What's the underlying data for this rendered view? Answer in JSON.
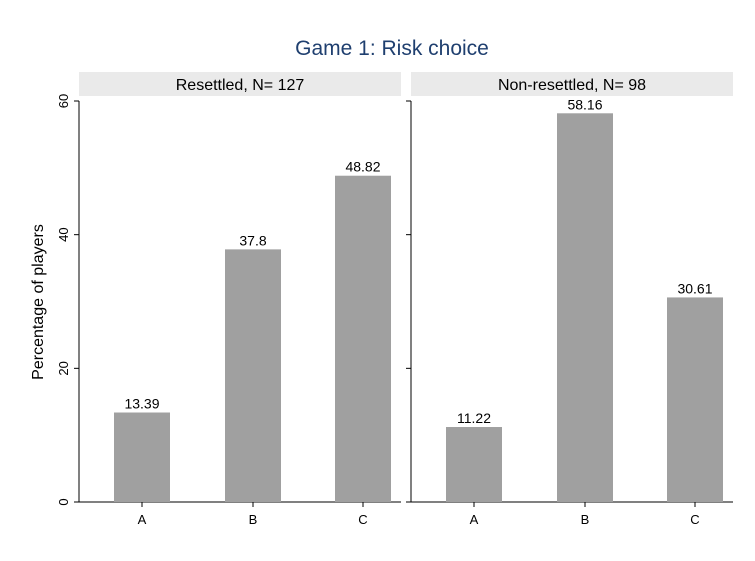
{
  "chart_data": {
    "type": "bar",
    "title": "Game 1: Risk choice",
    "ylabel": "Percentage of players",
    "xlabel": "",
    "ylim": [
      0,
      60
    ],
    "yticks": [
      0,
      20,
      40,
      60
    ],
    "grid": false,
    "categories": [
      "A",
      "B",
      "C"
    ],
    "bar_color": "#a0a0a0",
    "panel_header_color": "#eaeaea",
    "title_color": "#1f3f6f",
    "panels": [
      {
        "name": "Resettled, N= 127",
        "values": [
          13.39,
          37.8,
          48.82
        ],
        "value_labels": [
          "13.39",
          "37.8",
          "48.82"
        ]
      },
      {
        "name": "Non-resettled, N= 98",
        "values": [
          11.22,
          58.16,
          30.61
        ],
        "value_labels": [
          "11.22",
          "58.16",
          "30.61"
        ]
      }
    ]
  }
}
